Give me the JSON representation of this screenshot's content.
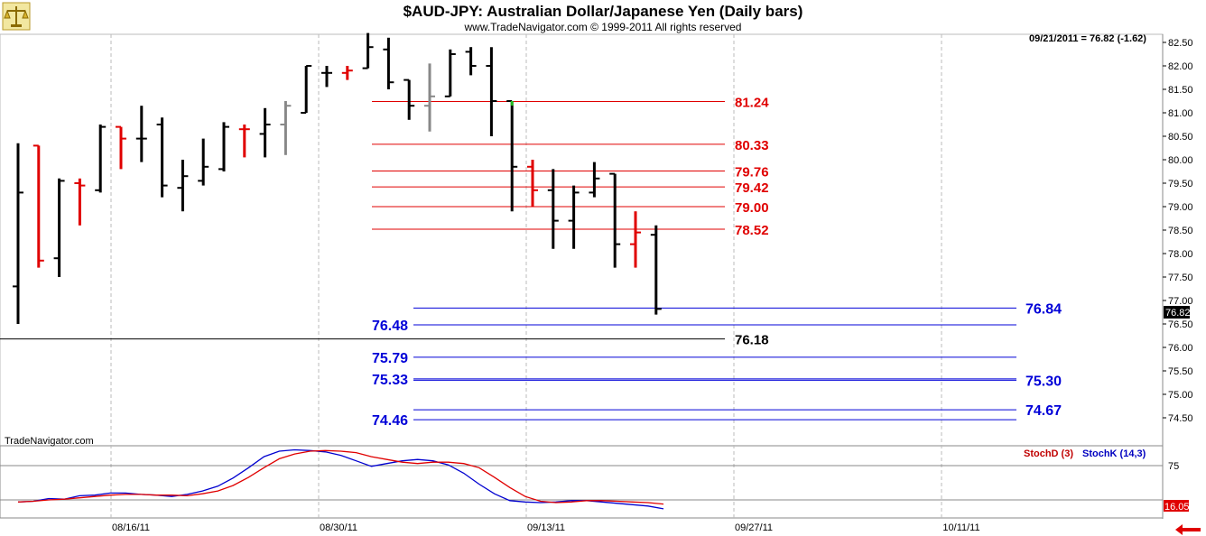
{
  "logo": {
    "icon": "scales-logo-icon"
  },
  "header": {
    "title": "$AUD-JPY:  Australian Dollar/Japanese Yen  (Daily bars)",
    "copyright": "www.TradeNavigator.com © 1999-2011 All rights reserved"
  },
  "readout": "09/21/2011 = 76.82 (-1.62)",
  "watermark": "TradeNavigator.com",
  "price_badge": "76.82",
  "osc_badge": "16.05",
  "colors": {
    "red_level": "#e00000",
    "blue_level": "#0000d8",
    "bull_up": "#e00000",
    "neutral": "#888888",
    "bar": "#000000",
    "stoch_d": "#e00000",
    "stoch_k": "#0000d0"
  },
  "chart_data": {
    "type": "ohlc",
    "title": "$AUD-JPY:  Australian Dollar/Japanese Yen  (Daily bars)",
    "x_ticks": [
      "08/16/11",
      "08/30/11",
      "09/13/11",
      "09/27/11",
      "10/11/11"
    ],
    "y_ticks": [
      "82.50",
      "82.00",
      "81.50",
      "81.00",
      "80.50",
      "80.00",
      "79.50",
      "79.00",
      "78.50",
      "78.00",
      "77.50",
      "77.00",
      "76.50",
      "76.00",
      "75.50",
      "75.00",
      "74.50"
    ],
    "ylim": [
      73.9,
      82.7
    ],
    "grid": "vertical dashed",
    "bars": [
      {
        "o": 77.3,
        "h": 80.35,
        "l": 76.5,
        "c": 79.3,
        "col": "k"
      },
      {
        "o": 80.3,
        "h": 80.3,
        "l": 77.7,
        "c": 77.85,
        "col": "r"
      },
      {
        "o": 77.9,
        "h": 79.6,
        "l": 77.5,
        "c": 79.55,
        "col": "k"
      },
      {
        "o": 79.5,
        "h": 79.6,
        "l": 78.6,
        "c": 79.45,
        "col": "r"
      },
      {
        "o": 79.35,
        "h": 80.75,
        "l": 79.3,
        "c": 80.7,
        "col": "k"
      },
      {
        "o": 80.7,
        "h": 80.7,
        "l": 79.8,
        "c": 80.45,
        "col": "r"
      },
      {
        "o": 80.45,
        "h": 81.15,
        "l": 79.95,
        "c": 80.45,
        "col": "k"
      },
      {
        "o": 80.75,
        "h": 80.9,
        "l": 79.2,
        "c": 79.45,
        "col": "k"
      },
      {
        "o": 79.4,
        "h": 80.0,
        "l": 78.9,
        "c": 79.65,
        "col": "k"
      },
      {
        "o": 79.55,
        "h": 80.45,
        "l": 79.45,
        "c": 79.85,
        "col": "k"
      },
      {
        "o": 79.8,
        "h": 80.8,
        "l": 79.75,
        "c": 80.7,
        "col": "k"
      },
      {
        "o": 80.65,
        "h": 80.75,
        "l": 80.05,
        "c": 80.65,
        "col": "r"
      },
      {
        "o": 80.55,
        "h": 81.1,
        "l": 80.05,
        "c": 80.75,
        "col": "k"
      },
      {
        "o": 80.75,
        "h": 81.25,
        "l": 80.1,
        "c": 81.15,
        "col": "g"
      },
      {
        "o": 81.0,
        "h": 82.0,
        "l": 81.0,
        "c": 82.0,
        "col": "k"
      },
      {
        "o": 81.85,
        "h": 82.0,
        "l": 81.55,
        "c": 81.85,
        "col": "k"
      },
      {
        "o": 81.85,
        "h": 82.0,
        "l": 81.7,
        "c": 81.9,
        "col": "r"
      },
      {
        "o": 81.95,
        "h": 82.7,
        "l": 81.95,
        "c": 82.4,
        "col": "k"
      },
      {
        "o": 82.35,
        "h": 82.6,
        "l": 81.5,
        "c": 81.65,
        "col": "k"
      },
      {
        "o": 81.7,
        "h": 81.7,
        "l": 80.85,
        "c": 81.15,
        "col": "k"
      },
      {
        "o": 81.15,
        "h": 82.05,
        "l": 80.6,
        "c": 81.35,
        "col": "g"
      },
      {
        "o": 81.35,
        "h": 82.35,
        "l": 81.35,
        "c": 82.25,
        "col": "k"
      },
      {
        "o": 82.3,
        "h": 82.4,
        "l": 81.8,
        "c": 82.0,
        "col": "k"
      },
      {
        "o": 82.0,
        "h": 82.4,
        "l": 80.5,
        "c": 81.25,
        "col": "k"
      },
      {
        "o": 81.25,
        "h": 81.25,
        "l": 78.9,
        "c": 79.85,
        "col": "gk"
      },
      {
        "o": 79.85,
        "h": 80.0,
        "l": 79.0,
        "c": 79.35,
        "col": "r"
      },
      {
        "o": 79.35,
        "h": 79.8,
        "l": 78.1,
        "c": 78.7,
        "col": "k"
      },
      {
        "o": 78.7,
        "h": 79.45,
        "l": 78.1,
        "c": 79.3,
        "col": "k"
      },
      {
        "o": 79.3,
        "h": 79.95,
        "l": 79.2,
        "c": 79.6,
        "col": "k"
      },
      {
        "o": 79.7,
        "h": 79.7,
        "l": 77.7,
        "c": 78.2,
        "col": "k"
      },
      {
        "o": 78.2,
        "h": 78.9,
        "l": 77.7,
        "c": 78.45,
        "col": "r"
      },
      {
        "o": 78.4,
        "h": 78.6,
        "l": 76.7,
        "c": 76.82,
        "col": "k"
      }
    ],
    "levels": [
      {
        "value": 81.24,
        "label": "81.24",
        "color": "red",
        "label_side": "right",
        "extent": "short"
      },
      {
        "value": 80.33,
        "label": "80.33",
        "color": "red",
        "label_side": "right",
        "extent": "short"
      },
      {
        "value": 79.76,
        "label": "79.76",
        "color": "red",
        "label_side": "right",
        "extent": "short"
      },
      {
        "value": 79.42,
        "label": "79.42",
        "color": "red",
        "label_side": "right",
        "extent": "short"
      },
      {
        "value": 79.0,
        "label": "79.00",
        "color": "red",
        "label_side": "right",
        "extent": "short"
      },
      {
        "value": 78.52,
        "label": "78.52",
        "color": "red",
        "label_side": "right",
        "extent": "short"
      },
      {
        "value": 76.84,
        "label": "76.84",
        "color": "blue",
        "label_side": "far-right",
        "extent": "long"
      },
      {
        "value": 76.48,
        "label": "76.48",
        "color": "blue",
        "label_side": "left",
        "extent": "long"
      },
      {
        "value": 76.18,
        "label": "76.18",
        "color": "black",
        "label_side": "right",
        "extent": "full"
      },
      {
        "value": 75.79,
        "label": "75.79",
        "color": "blue",
        "label_side": "left",
        "extent": "long"
      },
      {
        "value": 75.33,
        "label": "75.33",
        "color": "blue",
        "label_side": "left",
        "extent": "long"
      },
      {
        "value": 75.3,
        "label": "75.30",
        "color": "blue",
        "label_side": "far-right",
        "extent": "long"
      },
      {
        "value": 74.67,
        "label": "74.67",
        "color": "blue",
        "label_side": "far-right",
        "extent": "long"
      },
      {
        "value": 74.46,
        "label": "74.46",
        "color": "blue",
        "label_side": "left",
        "extent": "long"
      }
    ],
    "stochastic": {
      "legend": [
        "StochD (3)",
        "StochK (14,3)"
      ],
      "y_ticks": [
        "75"
      ],
      "ylim": [
        0,
        100
      ],
      "reference_lines": [
        75,
        25
      ],
      "stoch_d": [
        22,
        23,
        25,
        26,
        28,
        30,
        32,
        33,
        33,
        32,
        32,
        31,
        34,
        38,
        46,
        58,
        72,
        85,
        92,
        96,
        97,
        96,
        94,
        88,
        84,
        80,
        78,
        80,
        80,
        78,
        72,
        58,
        43,
        30,
        23,
        21,
        22,
        24,
        24,
        23,
        22,
        21,
        19
      ],
      "stoch_k": [
        22,
        23,
        27,
        26,
        31,
        32,
        35,
        35,
        33,
        32,
        30,
        33,
        38,
        45,
        57,
        72,
        88,
        96,
        98,
        97,
        95,
        90,
        82,
        74,
        78,
        82,
        84,
        82,
        76,
        64,
        48,
        34,
        24,
        22,
        21,
        22,
        24,
        24,
        22,
        20,
        18,
        16,
        12
      ]
    }
  }
}
